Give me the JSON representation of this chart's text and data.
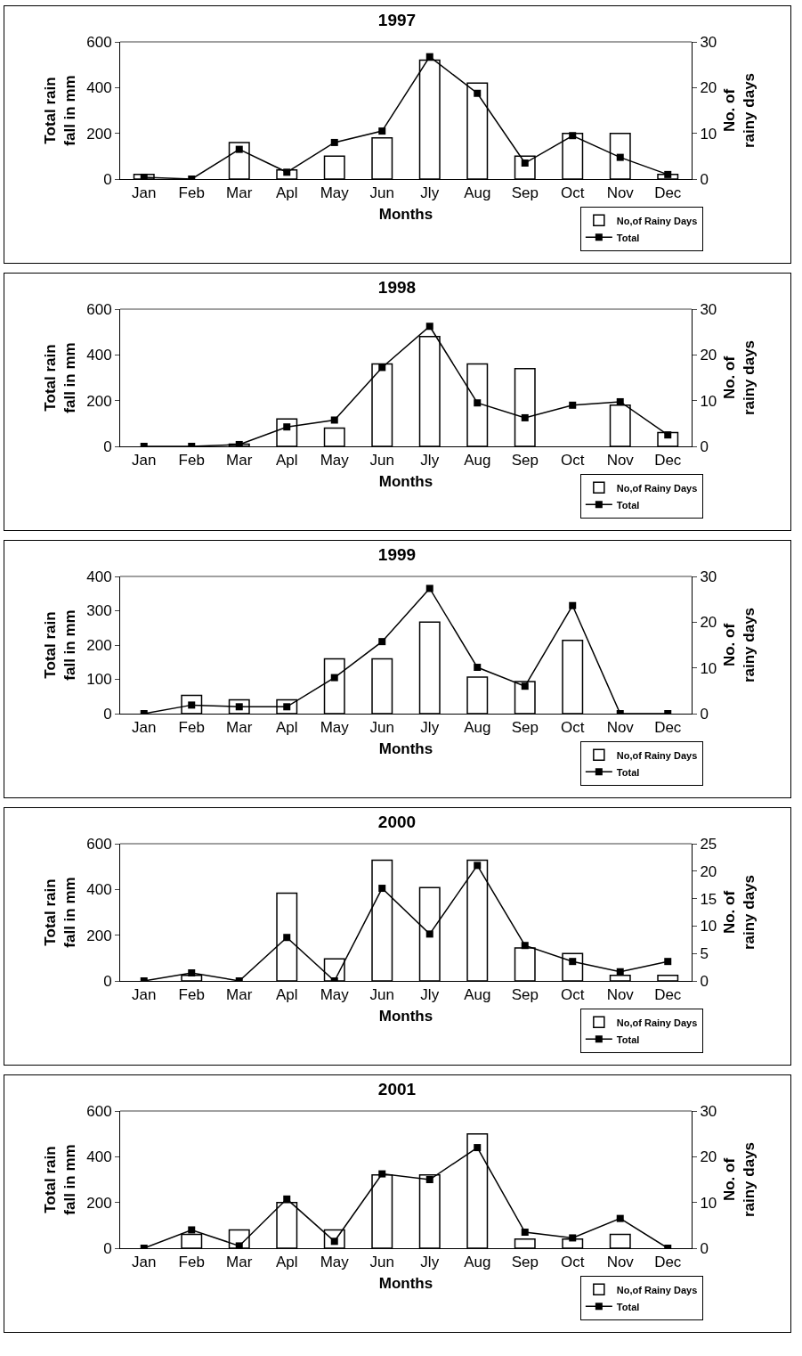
{
  "chart_data": [
    {
      "type": "bar",
      "title": "1997",
      "xlabel": "Months",
      "ylabel": "Total rain fall in mm",
      "y2label": "No. of rainy days",
      "categories": [
        "Jan",
        "Feb",
        "Mar",
        "Apl",
        "May",
        "Jun",
        "Jly",
        "Aug",
        "Sep",
        "Oct",
        "Nov",
        "Dec"
      ],
      "series": [
        {
          "name": "No,of Rainy Days",
          "axis": "y2",
          "color": "#ffffff",
          "values": [
            1,
            0,
            8,
            2,
            5,
            9,
            26,
            21,
            5,
            10,
            10,
            1
          ]
        },
        {
          "name": "Total",
          "type": "line",
          "axis": "y",
          "color": "#000000",
          "marker": "square",
          "values": [
            8,
            0,
            130,
            30,
            160,
            210,
            535,
            375,
            70,
            190,
            95,
            20
          ]
        }
      ],
      "ylim": [
        0,
        600
      ],
      "yticks": [
        0,
        200,
        400,
        600
      ],
      "y2lim": [
        0,
        30
      ],
      "y2ticks": [
        0,
        10,
        20,
        30
      ],
      "grid": false,
      "legend": "bottom right"
    },
    {
      "type": "bar",
      "title": "1998",
      "xlabel": "Months",
      "ylabel": "Total rain fall in mm",
      "y2label": "No. of rainy days",
      "categories": [
        "Jan",
        "Feb",
        "Mar",
        "Apl",
        "May",
        "Jun",
        "Jly",
        "Aug",
        "Sep",
        "Oct",
        "Nov",
        "Dec"
      ],
      "series": [
        {
          "name": "No,of Rainy Days",
          "axis": "y2",
          "color": "#ffffff",
          "values": [
            0,
            0,
            0.5,
            6,
            4,
            18,
            24,
            18,
            17,
            0,
            9,
            3
          ]
        },
        {
          "name": "Total",
          "type": "line",
          "axis": "y",
          "color": "#000000",
          "marker": "square",
          "values": [
            0,
            0,
            8,
            85,
            115,
            345,
            525,
            190,
            125,
            180,
            195,
            50
          ]
        }
      ],
      "ylim": [
        0,
        600
      ],
      "yticks": [
        0,
        200,
        400,
        600
      ],
      "y2lim": [
        0,
        30
      ],
      "y2ticks": [
        0,
        10,
        20,
        30
      ],
      "grid": false,
      "legend": "bottom right"
    },
    {
      "type": "bar",
      "title": "1999",
      "xlabel": "Months",
      "ylabel": "Total rain fall in mm",
      "y2label": "No. of rainy days",
      "categories": [
        "Jan",
        "Feb",
        "Mar",
        "Apl",
        "May",
        "Jun",
        "Jly",
        "Aug",
        "Sep",
        "Oct",
        "Nov",
        "Dec"
      ],
      "series": [
        {
          "name": "No,of Rainy Days",
          "axis": "y2",
          "color": "#ffffff",
          "values": [
            0,
            4,
            3,
            3,
            12,
            12,
            20,
            8,
            7,
            16,
            0,
            0
          ]
        },
        {
          "name": "Total",
          "type": "line",
          "axis": "y",
          "color": "#000000",
          "marker": "square",
          "values": [
            0,
            25,
            20,
            20,
            105,
            210,
            365,
            135,
            80,
            315,
            0,
            0
          ]
        }
      ],
      "ylim": [
        0,
        400
      ],
      "yticks": [
        0,
        100,
        200,
        300,
        400
      ],
      "y2lim": [
        0,
        30
      ],
      "y2ticks": [
        0,
        10,
        20,
        30
      ],
      "grid": false,
      "legend": "bottom right"
    },
    {
      "type": "bar",
      "title": "2000",
      "xlabel": "Months",
      "ylabel": "Total rain fall in mm",
      "y2label": "No. of rainy days",
      "categories": [
        "Jan",
        "Feb",
        "Mar",
        "Apl",
        "May",
        "Jun",
        "Jly",
        "Aug",
        "Sep",
        "Oct",
        "Nov",
        "Dec"
      ],
      "series": [
        {
          "name": "No,of Rainy Days",
          "axis": "y2",
          "color": "#ffffff",
          "values": [
            0,
            1,
            0,
            16,
            4,
            22,
            17,
            22,
            6,
            5,
            1,
            1
          ]
        },
        {
          "name": "Total",
          "type": "line",
          "axis": "y",
          "color": "#000000",
          "marker": "square",
          "values": [
            0,
            35,
            0,
            190,
            0,
            405,
            205,
            505,
            155,
            85,
            40,
            85
          ]
        }
      ],
      "ylim": [
        0,
        600
      ],
      "yticks": [
        0,
        200,
        400,
        600
      ],
      "y2lim": [
        0,
        25
      ],
      "y2ticks": [
        0,
        5,
        10,
        15,
        20,
        25
      ],
      "grid": false,
      "legend": "bottom right"
    },
    {
      "type": "bar",
      "title": "2001",
      "xlabel": "Months",
      "ylabel": "Total rain fall in mm",
      "y2label": "No. of rainy days",
      "categories": [
        "Jan",
        "Feb",
        "Mar",
        "Apl",
        "May",
        "Jun",
        "Jly",
        "Aug",
        "Sep",
        "Oct",
        "Nov",
        "Dec"
      ],
      "series": [
        {
          "name": "No,of Rainy Days",
          "axis": "y2",
          "color": "#ffffff",
          "values": [
            0,
            3,
            4,
            10,
            4,
            16,
            16,
            25,
            2,
            2,
            3,
            0
          ]
        },
        {
          "name": "Total",
          "type": "line",
          "axis": "y",
          "color": "#000000",
          "marker": "square",
          "values": [
            0,
            80,
            10,
            215,
            30,
            325,
            300,
            440,
            70,
            45,
            130,
            0
          ]
        }
      ],
      "ylim": [
        0,
        600
      ],
      "yticks": [
        0,
        200,
        400,
        600
      ],
      "y2lim": [
        0,
        30
      ],
      "y2ticks": [
        0,
        10,
        20,
        30
      ],
      "grid": false,
      "legend": "bottom right"
    }
  ]
}
